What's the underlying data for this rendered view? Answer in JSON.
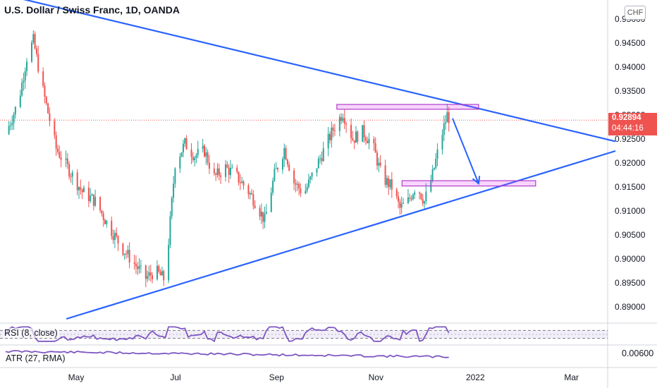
{
  "chart_data": {
    "type": "candlestick",
    "title": "U.S. Dollar / Swiss Franc, 1D, OANDA",
    "currency": "CHF",
    "last_price": "0.92894",
    "countdown": "04:44:16",
    "y_ticks": [
      "0.95000",
      "0.94500",
      "0.94000",
      "0.93500",
      "0.93000",
      "0.92500",
      "0.92000",
      "0.91500",
      "0.91000",
      "0.90500",
      "0.90000",
      "0.89500",
      "0.89000"
    ],
    "ylim": [
      0.8865,
      0.9535
    ],
    "x_ticks": [
      "May",
      "Jul",
      "Sep",
      "Nov",
      "2022",
      "Mar"
    ],
    "x_labels_detail": [
      {
        "label": "May",
        "date": "2021-05-01"
      },
      {
        "label": "Jul",
        "date": "2021-07-01"
      },
      {
        "label": "Sep",
        "date": "2021-09-01"
      },
      {
        "label": "Nov",
        "date": "2021-11-01"
      },
      {
        "label": "2022",
        "date": "2022-01-01"
      },
      {
        "label": "Mar",
        "date": "2022-03-01"
      }
    ],
    "close_path": [
      [
        "2021-03-20",
        0.926
      ],
      [
        "2021-03-28",
        0.933
      ],
      [
        "2021-04-02",
        0.942
      ],
      [
        "2021-04-06",
        0.9455
      ],
      [
        "2021-04-12",
        0.935
      ],
      [
        "2021-04-20",
        0.923
      ],
      [
        "2021-04-28",
        0.9185
      ],
      [
        "2021-05-06",
        0.914
      ],
      [
        "2021-05-14",
        0.912
      ],
      [
        "2021-05-22",
        0.907
      ],
      [
        "2021-05-30",
        0.9025
      ],
      [
        "2021-06-07",
        0.899
      ],
      [
        "2021-06-14",
        0.896
      ],
      [
        "2021-06-20",
        0.8975
      ],
      [
        "2021-06-26",
        0.8955
      ],
      [
        "2021-07-02",
        0.92
      ],
      [
        "2021-07-08",
        0.924
      ],
      [
        "2021-07-14",
        0.9215
      ],
      [
        "2021-07-20",
        0.9225
      ],
      [
        "2021-07-26",
        0.917
      ],
      [
        "2021-08-02",
        0.919
      ],
      [
        "2021-08-08",
        0.9175
      ],
      [
        "2021-08-14",
        0.915
      ],
      [
        "2021-08-20",
        0.912
      ],
      [
        "2021-08-26",
        0.908
      ],
      [
        "2021-09-01",
        0.9175
      ],
      [
        "2021-09-07",
        0.923
      ],
      [
        "2021-09-13",
        0.916
      ],
      [
        "2021-09-19",
        0.9135
      ],
      [
        "2021-09-25",
        0.918
      ],
      [
        "2021-10-01",
        0.9225
      ],
      [
        "2021-10-07",
        0.927
      ],
      [
        "2021-10-13",
        0.9305
      ],
      [
        "2021-10-19",
        0.925
      ],
      [
        "2021-10-25",
        0.9265
      ],
      [
        "2021-10-31",
        0.924
      ],
      [
        "2021-11-06",
        0.917
      ],
      [
        "2021-11-12",
        0.915
      ],
      [
        "2021-11-17",
        0.9105
      ],
      [
        "2021-11-22",
        0.912
      ],
      [
        "2021-11-27",
        0.9155
      ],
      [
        "2021-12-02",
        0.912
      ],
      [
        "2021-12-07",
        0.9175
      ],
      [
        "2021-12-12",
        0.925
      ],
      [
        "2021-12-16",
        0.93
      ],
      [
        "2021-12-18",
        0.9289
      ]
    ],
    "annotations": {
      "upper_trendline": [
        [
          "2021-03-25",
          0.9545
        ],
        [
          "2022-03-28",
          0.9245
        ]
      ],
      "lower_trendline": [
        [
          "2021-04-25",
          0.8875
        ],
        [
          "2022-03-28",
          0.9225
        ]
      ],
      "resistance_zone": {
        "from": "2021-10-08",
        "to": "2022-01-03",
        "y": [
          0.9322,
          0.9312
        ]
      },
      "support_zone": {
        "from": "2021-11-17",
        "to": "2022-02-07",
        "y": [
          0.9163,
          0.9152
        ]
      },
      "projection_arrow": [
        [
          "2021-12-18",
          0.9293
        ],
        [
          "2022-01-03",
          0.9157
        ]
      ],
      "last_price_line": 0.92894
    },
    "indicators": [
      {
        "name": "RSI (8, close)",
        "band": [
          30,
          70
        ]
      },
      {
        "name": "ATR (27, RMA)",
        "tick": "0.00600"
      }
    ]
  }
}
